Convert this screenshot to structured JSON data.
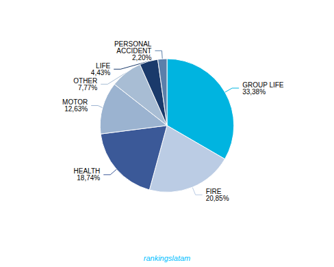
{
  "chart_data": {
    "type": "pie",
    "categories": [
      "GROUP LIFE",
      "FIRE",
      "HEALTH",
      "MOTOR",
      "OTHER",
      "LIFE",
      "PERSONAL\nACCIDENT"
    ],
    "values": [
      33.38,
      20.85,
      18.74,
      12.63,
      7.77,
      4.43,
      2.2
    ],
    "value_labels": [
      "33,38%",
      "20,85%",
      "18,74%",
      "12,63%",
      "7,77%",
      "4,43%",
      "2,20%"
    ],
    "colors": [
      "#00B4E0",
      "#BBCCE4",
      "#3B5998",
      "#9BB3D0",
      "#A8BDD4",
      "#1A3A6B",
      "#5B7FAA"
    ],
    "annotations": [
      {
        "text": "rankingslatam",
        "color": "#00BFFF"
      }
    ]
  }
}
